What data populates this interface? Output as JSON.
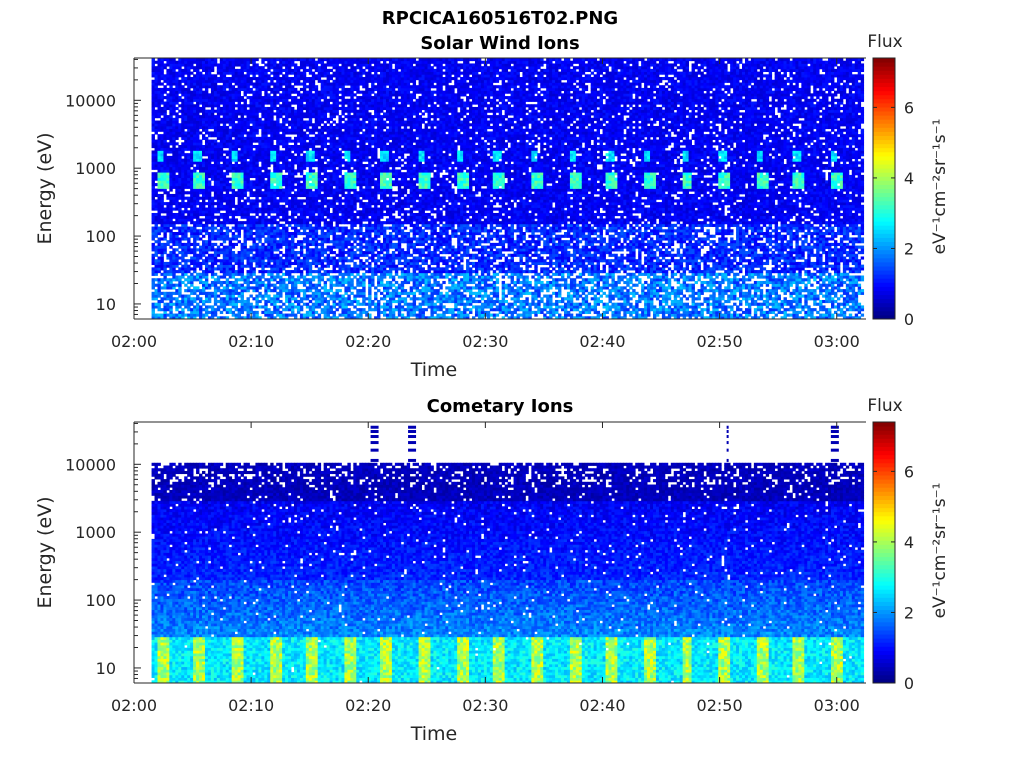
{
  "figure_title": "RPCICA160516T02.PNG",
  "chart_data": [
    {
      "type": "heatmap",
      "title": "Solar Wind Ions",
      "xlabel": "Time",
      "ylabel": "Energy (eV)",
      "y_scale": "log",
      "ylim": [
        6,
        42000
      ],
      "x_ticks": [
        "02:00",
        "02:10",
        "02:20",
        "02:30",
        "02:40",
        "02:50",
        "03:00"
      ],
      "x_tick_minutes": [
        0,
        10,
        20,
        30,
        40,
        50,
        60
      ],
      "xlim_minutes": [
        0,
        62.5
      ],
      "data_span_minutes": [
        1.5,
        62.3
      ],
      "y_ticks": [
        10,
        100,
        1000,
        10000
      ],
      "y_tick_labels": [
        "10",
        "100",
        "1000",
        "10000"
      ],
      "colorbar": {
        "title": "Flux",
        "label": "eV⁻¹cm⁻²sr⁻¹s⁻¹",
        "range": [
          0,
          7.4
        ],
        "ticks": [
          0,
          2,
          4,
          6
        ],
        "colormap": "jet"
      },
      "features": [
        {
          "energy_eV": 700,
          "flux": 3.3,
          "period_minutes": 3.2,
          "description": "periodic beam"
        },
        {
          "energy_eV": 1600,
          "flux": 2.6,
          "period_minutes": 3.2
        },
        {
          "energy_range_eV": [
            6,
            30
          ],
          "flux": 1.8
        }
      ],
      "background_flux": 0.6
    },
    {
      "type": "heatmap",
      "title": "Cometary Ions",
      "xlabel": "Time",
      "ylabel": "Energy (eV)",
      "y_scale": "log",
      "ylim": [
        6,
        42000
      ],
      "x_ticks": [
        "02:00",
        "02:10",
        "02:20",
        "02:30",
        "02:40",
        "02:50",
        "03:00"
      ],
      "x_tick_minutes": [
        0,
        10,
        20,
        30,
        40,
        50,
        60
      ],
      "xlim_minutes": [
        0,
        62.5
      ],
      "data_span_minutes": [
        1.5,
        62.3
      ],
      "y_ticks": [
        10,
        100,
        1000,
        10000
      ],
      "y_tick_labels": [
        "10",
        "100",
        "1000",
        "10000"
      ],
      "colorbar": {
        "title": "Flux",
        "label": "eV⁻¹cm⁻²sr⁻¹s⁻¹",
        "range": [
          0,
          7.4
        ],
        "ticks": [
          0,
          2,
          4,
          6
        ],
        "colormap": "jet"
      },
      "features": [
        {
          "energy_range_eV": [
            6,
            30
          ],
          "flux": 4.0,
          "period_minutes": 3.2,
          "description": "periodic low-energy peaks"
        },
        {
          "energy_range_eV": [
            30,
            200
          ],
          "flux": 1.9
        },
        {
          "energy_range_eV": [
            200,
            10500
          ],
          "flux": 0.8
        },
        {
          "energy_eV_max": 10500,
          "description": "upper data cutoff"
        }
      ],
      "background_flux": 0.5
    }
  ]
}
